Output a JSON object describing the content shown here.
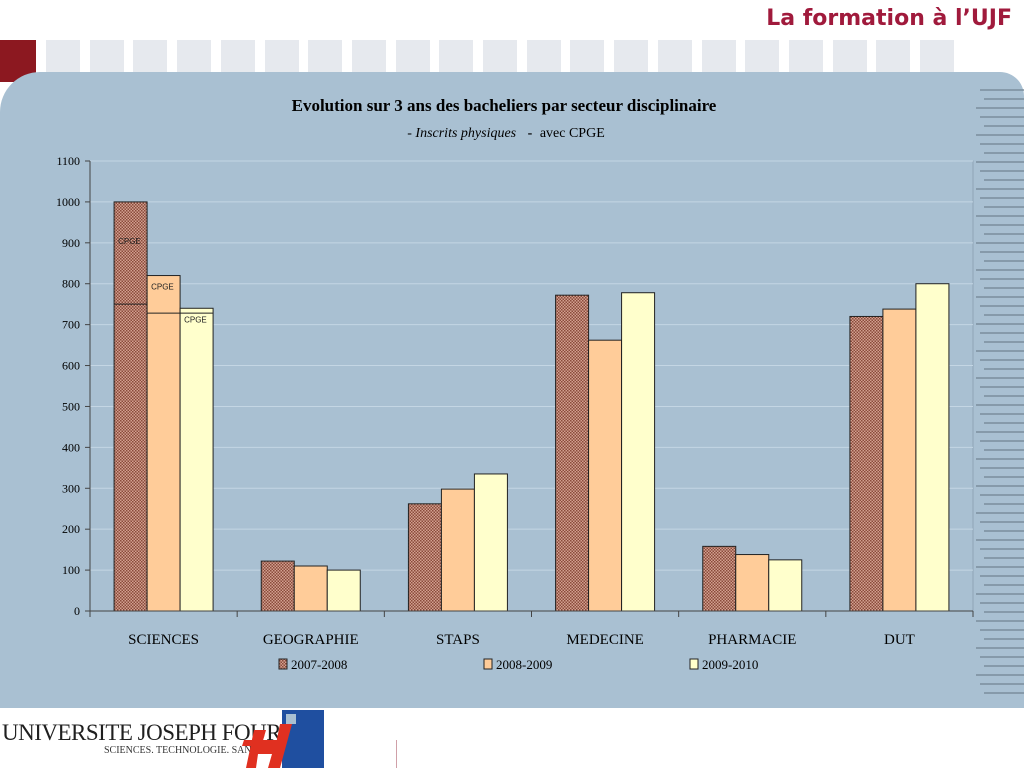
{
  "header": {
    "title": "La formation à l’UJF"
  },
  "logo": {
    "name": "UNIVERSITE JOSEPH FOURIER",
    "tagline": "SCIENCES. TECHNOLOGIE. SANTÉ"
  },
  "colors": {
    "title": "#a01a3c",
    "panel": "#a9c0d2",
    "series_2007": "#c98a78",
    "series_2008": "#ffcc99",
    "series_2009": "#ffffcc"
  },
  "chart_data": {
    "type": "bar",
    "title": "Evolution sur 3 ans des bacheliers par secteur disciplinaire",
    "subtitle_italic": "- Inscrits physiques",
    "subtitle_dash": "-",
    "subtitle_rest": "avec CPGE",
    "categories": [
      "SCIENCES",
      "GEOGRAPHIE",
      "STAPS",
      "MEDECINE",
      "PHARMACIE",
      "DUT"
    ],
    "series": [
      {
        "name": "2007-2008",
        "values": [
          1000,
          122,
          262,
          772,
          158,
          720
        ]
      },
      {
        "name": "2008-2009",
        "values": [
          820,
          110,
          298,
          662,
          138,
          738
        ]
      },
      {
        "name": "2009-2010",
        "values": [
          740,
          100,
          335,
          778,
          125,
          800
        ]
      }
    ],
    "cpge": {
      "label": "CPGE",
      "base_values": [
        750,
        728,
        728
      ]
    },
    "yticks": [
      0,
      100,
      200,
      300,
      400,
      500,
      600,
      700,
      800,
      900,
      1000,
      1100
    ],
    "ylim": [
      0,
      1100
    ],
    "grid": true,
    "legend": "bottom"
  }
}
